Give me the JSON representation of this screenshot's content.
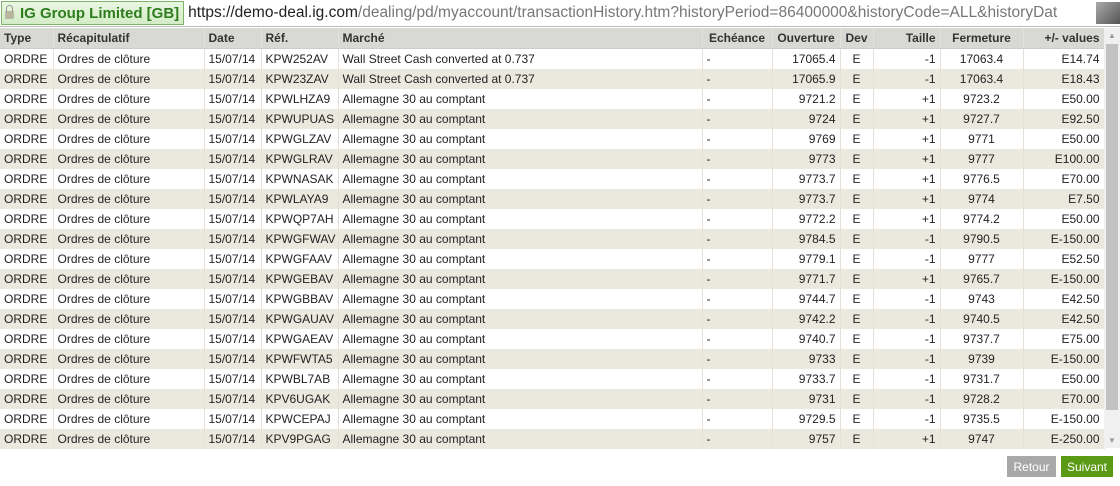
{
  "browser": {
    "site_identity": "IG Group Limited [GB]",
    "url_host": "https://demo-deal.ig.com",
    "url_path": "/dealing/pd/myaccount/transactionHistory.htm?historyPeriod=86400000&historyCode=ALL&historyDat"
  },
  "table": {
    "columns": [
      "Type",
      "Récapitulatif",
      "Date",
      "Réf.",
      "Marché",
      "Echéance",
      "Ouverture",
      "Dev",
      "Taille",
      "Fermeture",
      "+/- values"
    ],
    "rows": [
      [
        "ORDRE",
        "Ordres de clôture",
        "15/07/14",
        "KPW252AV",
        "Wall Street Cash converted at 0.737",
        "-",
        "17065.4",
        "E",
        "-1",
        "17063.4",
        "E14.74"
      ],
      [
        "ORDRE",
        "Ordres de clôture",
        "15/07/14",
        "KPW23ZAV",
        "Wall Street Cash converted at 0.737",
        "-",
        "17065.9",
        "E",
        "-1",
        "17063.4",
        "E18.43"
      ],
      [
        "ORDRE",
        "Ordres de clôture",
        "15/07/14",
        "KPWLHZA9",
        "Allemagne 30 au comptant",
        "-",
        "9721.2",
        "E",
        "+1",
        "9723.2",
        "E50.00"
      ],
      [
        "ORDRE",
        "Ordres de clôture",
        "15/07/14",
        "KPWUPUAS",
        "Allemagne 30 au comptant",
        "-",
        "9724",
        "E",
        "+1",
        "9727.7",
        "E92.50"
      ],
      [
        "ORDRE",
        "Ordres de clôture",
        "15/07/14",
        "KPWGLZAV",
        "Allemagne 30 au comptant",
        "-",
        "9769",
        "E",
        "+1",
        "9771",
        "E50.00"
      ],
      [
        "ORDRE",
        "Ordres de clôture",
        "15/07/14",
        "KPWGLRAV",
        "Allemagne 30 au comptant",
        "-",
        "9773",
        "E",
        "+1",
        "9777",
        "E100.00"
      ],
      [
        "ORDRE",
        "Ordres de clôture",
        "15/07/14",
        "KPWNASAK",
        "Allemagne 30 au comptant",
        "-",
        "9773.7",
        "E",
        "+1",
        "9776.5",
        "E70.00"
      ],
      [
        "ORDRE",
        "Ordres de clôture",
        "15/07/14",
        "KPWLAYA9",
        "Allemagne 30 au comptant",
        "-",
        "9773.7",
        "E",
        "+1",
        "9774",
        "E7.50"
      ],
      [
        "ORDRE",
        "Ordres de clôture",
        "15/07/14",
        "KPWQP7AH",
        "Allemagne 30 au comptant",
        "-",
        "9772.2",
        "E",
        "+1",
        "9774.2",
        "E50.00"
      ],
      [
        "ORDRE",
        "Ordres de clôture",
        "15/07/14",
        "KPWGFWAV",
        "Allemagne 30 au comptant",
        "-",
        "9784.5",
        "E",
        "-1",
        "9790.5",
        "E-150.00"
      ],
      [
        "ORDRE",
        "Ordres de clôture",
        "15/07/14",
        "KPWGFAAV",
        "Allemagne 30 au comptant",
        "-",
        "9779.1",
        "E",
        "-1",
        "9777",
        "E52.50"
      ],
      [
        "ORDRE",
        "Ordres de clôture",
        "15/07/14",
        "KPWGEBAV",
        "Allemagne 30 au comptant",
        "-",
        "9771.7",
        "E",
        "+1",
        "9765.7",
        "E-150.00"
      ],
      [
        "ORDRE",
        "Ordres de clôture",
        "15/07/14",
        "KPWGBBAV",
        "Allemagne 30 au comptant",
        "-",
        "9744.7",
        "E",
        "-1",
        "9743",
        "E42.50"
      ],
      [
        "ORDRE",
        "Ordres de clôture",
        "15/07/14",
        "KPWGAUAV",
        "Allemagne 30 au comptant",
        "-",
        "9742.2",
        "E",
        "-1",
        "9740.5",
        "E42.50"
      ],
      [
        "ORDRE",
        "Ordres de clôture",
        "15/07/14",
        "KPWGAEAV",
        "Allemagne 30 au comptant",
        "-",
        "9740.7",
        "E",
        "-1",
        "9737.7",
        "E75.00"
      ],
      [
        "ORDRE",
        "Ordres de clôture",
        "15/07/14",
        "KPWFWTA5",
        "Allemagne 30 au comptant",
        "-",
        "9733",
        "E",
        "-1",
        "9739",
        "E-150.00"
      ],
      [
        "ORDRE",
        "Ordres de clôture",
        "15/07/14",
        "KPWBL7AB",
        "Allemagne 30 au comptant",
        "-",
        "9733.7",
        "E",
        "-1",
        "9731.7",
        "E50.00"
      ],
      [
        "ORDRE",
        "Ordres de clôture",
        "15/07/14",
        "KPV6UGAK",
        "Allemagne 30 au comptant",
        "-",
        "9731",
        "E",
        "-1",
        "9728.2",
        "E70.00"
      ],
      [
        "ORDRE",
        "Ordres de clôture",
        "15/07/14",
        "KPWCEPAJ",
        "Allemagne 30 au comptant",
        "-",
        "9729.5",
        "E",
        "-1",
        "9735.5",
        "E-150.00"
      ],
      [
        "ORDRE",
        "Ordres de clôture",
        "15/07/14",
        "KPV9PGAG",
        "Allemagne 30 au comptant",
        "-",
        "9757",
        "E",
        "+1",
        "9747",
        "E-250.00"
      ]
    ]
  },
  "buttons": {
    "back": "Retour",
    "next": "Suivant"
  },
  "colors": {
    "next": "#5a9a14",
    "back": "#a8a8a8",
    "identity": "#2e7d1e"
  }
}
